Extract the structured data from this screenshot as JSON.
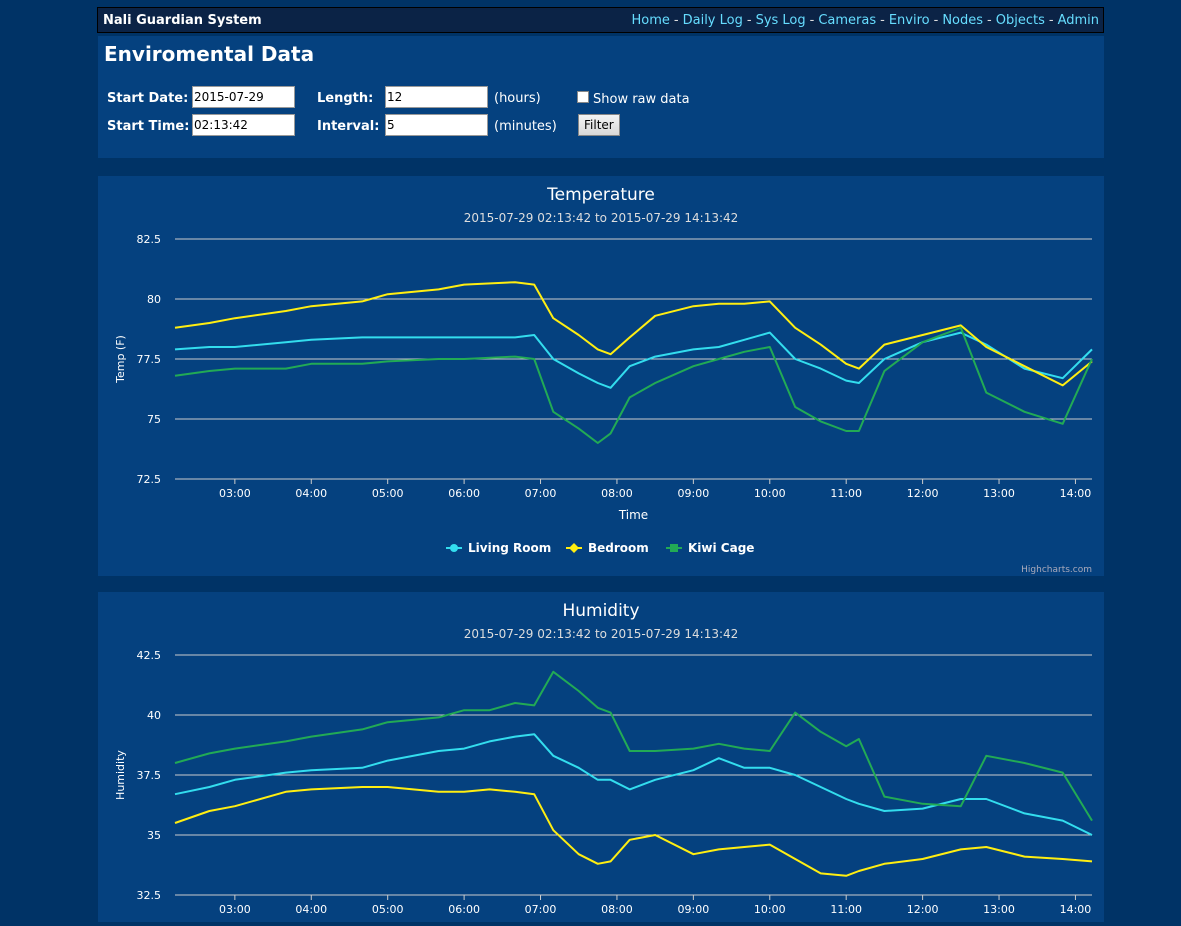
{
  "header": {
    "brand": "Nali Guardian System",
    "nav": [
      "Home",
      "Daily Log",
      "Sys Log",
      "Cameras",
      "Enviro",
      "Nodes",
      "Objects",
      "Admin"
    ]
  },
  "filter": {
    "title": "Enviromental Data",
    "start_date_label": "Start Date:",
    "start_date": "2015-07-29",
    "start_time_label": "Start Time:",
    "start_time": "02:13:42",
    "length_label": "Length:",
    "length": "12",
    "length_unit": "(hours)",
    "interval_label": "Interval:",
    "interval": "5",
    "interval_unit": "(minutes)",
    "raw_label": "Show raw data",
    "filter_button": "Filter"
  },
  "credit": "Highcharts.com",
  "colors": {
    "living": "#33ddee",
    "bedroom": "#ffee11",
    "kiwi": "#22aa55"
  },
  "chart_data": [
    {
      "type": "line",
      "title": "Temperature",
      "subtitle": "2015-07-29 02:13:42 to 2015-07-29 14:13:42",
      "xlabel": "Time",
      "ylabel": "Temp (F)",
      "ylim": [
        72.5,
        82.5
      ],
      "yticks": [
        "82.5",
        "80",
        "77.5",
        "75",
        "72.5"
      ],
      "xticks": [
        "03:00",
        "04:00",
        "05:00",
        "06:00",
        "07:00",
        "08:00",
        "09:00",
        "10:00",
        "11:00",
        "12:00",
        "13:00",
        "14:00"
      ],
      "xrange": [
        "02:13",
        "14:13"
      ],
      "legend": "bottom-center",
      "series": [
        {
          "name": "Living Room",
          "key": "living",
          "marker": "circle",
          "x": [
            "02:13",
            "02:40",
            "03:00",
            "03:40",
            "04:00",
            "04:40",
            "05:00",
            "05:40",
            "06:00",
            "06:40",
            "06:55",
            "07:10",
            "07:30",
            "07:45",
            "07:55",
            "08:10",
            "08:30",
            "09:00",
            "09:20",
            "09:40",
            "10:00",
            "10:20",
            "10:40",
            "11:00",
            "11:10",
            "11:30",
            "12:00",
            "12:30",
            "12:50",
            "13:20",
            "13:50",
            "14:13"
          ],
          "y": [
            77.9,
            78.0,
            78.0,
            78.2,
            78.3,
            78.4,
            78.4,
            78.4,
            78.4,
            78.4,
            78.5,
            77.5,
            76.9,
            76.5,
            76.3,
            77.2,
            77.6,
            77.9,
            78.0,
            78.3,
            78.6,
            77.5,
            77.1,
            76.6,
            76.5,
            77.5,
            78.2,
            78.6,
            78.1,
            77.1,
            76.7,
            77.9
          ]
        },
        {
          "name": "Bedroom",
          "key": "bedroom",
          "marker": "diamond",
          "x": [
            "02:13",
            "02:40",
            "03:00",
            "03:40",
            "04:00",
            "04:40",
            "05:00",
            "05:40",
            "06:00",
            "06:40",
            "06:55",
            "07:10",
            "07:30",
            "07:45",
            "07:55",
            "08:10",
            "08:30",
            "09:00",
            "09:20",
            "09:40",
            "10:00",
            "10:20",
            "10:40",
            "11:00",
            "11:10",
            "11:30",
            "12:00",
            "12:30",
            "12:50",
            "13:20",
            "13:50",
            "14:13"
          ],
          "y": [
            78.8,
            79.0,
            79.2,
            79.5,
            79.7,
            79.9,
            80.2,
            80.4,
            80.6,
            80.7,
            80.6,
            79.2,
            78.5,
            77.9,
            77.7,
            78.4,
            79.3,
            79.7,
            79.8,
            79.8,
            79.9,
            78.8,
            78.1,
            77.3,
            77.1,
            78.1,
            78.5,
            78.9,
            78.0,
            77.2,
            76.4,
            77.4
          ]
        },
        {
          "name": "Kiwi Cage",
          "key": "kiwi",
          "marker": "square",
          "x": [
            "02:13",
            "02:40",
            "03:00",
            "03:40",
            "04:00",
            "04:40",
            "05:00",
            "05:40",
            "06:00",
            "06:40",
            "06:55",
            "07:10",
            "07:30",
            "07:45",
            "07:55",
            "08:10",
            "08:30",
            "09:00",
            "09:20",
            "09:40",
            "10:00",
            "10:20",
            "10:40",
            "11:00",
            "11:10",
            "11:30",
            "12:00",
            "12:30",
            "12:50",
            "13:20",
            "13:50",
            "14:13"
          ],
          "y": [
            76.8,
            77.0,
            77.1,
            77.1,
            77.3,
            77.3,
            77.4,
            77.5,
            77.5,
            77.6,
            77.5,
            75.3,
            74.6,
            74.0,
            74.4,
            75.9,
            76.5,
            77.2,
            77.5,
            77.8,
            78.0,
            75.5,
            74.9,
            74.5,
            74.5,
            77.0,
            78.2,
            78.8,
            76.1,
            75.3,
            74.8,
            77.5
          ]
        }
      ]
    },
    {
      "type": "line",
      "title": "Humidity",
      "subtitle": "2015-07-29 02:13:42 to 2015-07-29 14:13:42",
      "ylabel": "Humidity",
      "ylim": [
        32.5,
        42.5
      ],
      "yticks": [
        "42.5",
        "40",
        "37.5",
        "35",
        "32.5"
      ],
      "xticks": [
        "03:00",
        "04:00",
        "05:00",
        "06:00",
        "07:00",
        "08:00",
        "09:00",
        "10:00",
        "11:00",
        "12:00",
        "13:00",
        "14:00"
      ],
      "xrange": [
        "02:13",
        "14:13"
      ],
      "series": [
        {
          "name": "Living Room",
          "key": "living",
          "x": [
            "02:13",
            "02:40",
            "03:00",
            "03:40",
            "04:00",
            "04:40",
            "05:00",
            "05:40",
            "06:00",
            "06:20",
            "06:40",
            "06:55",
            "07:10",
            "07:30",
            "07:45",
            "07:55",
            "08:10",
            "08:30",
            "09:00",
            "09:20",
            "09:40",
            "10:00",
            "10:20",
            "10:40",
            "11:00",
            "11:10",
            "11:30",
            "12:00",
            "12:30",
            "12:50",
            "13:20",
            "13:50",
            "14:13"
          ],
          "y": [
            36.7,
            37.0,
            37.3,
            37.6,
            37.7,
            37.8,
            38.1,
            38.5,
            38.6,
            38.9,
            39.1,
            39.2,
            38.3,
            37.8,
            37.3,
            37.3,
            36.9,
            37.3,
            37.7,
            38.2,
            37.8,
            37.8,
            37.5,
            37.0,
            36.5,
            36.3,
            36.0,
            36.1,
            36.5,
            36.5,
            35.9,
            35.6,
            35.0
          ]
        },
        {
          "name": "Bedroom",
          "key": "bedroom",
          "x": [
            "02:13",
            "02:40",
            "03:00",
            "03:40",
            "04:00",
            "04:40",
            "05:00",
            "05:40",
            "06:00",
            "06:20",
            "06:40",
            "06:55",
            "07:10",
            "07:30",
            "07:45",
            "07:55",
            "08:10",
            "08:30",
            "09:00",
            "09:20",
            "09:40",
            "10:00",
            "10:20",
            "10:40",
            "11:00",
            "11:10",
            "11:30",
            "12:00",
            "12:30",
            "12:50",
            "13:20",
            "13:50",
            "14:13"
          ],
          "y": [
            35.5,
            36.0,
            36.2,
            36.8,
            36.9,
            37.0,
            37.0,
            36.8,
            36.8,
            36.9,
            36.8,
            36.7,
            35.2,
            34.2,
            33.8,
            33.9,
            34.8,
            35.0,
            34.2,
            34.4,
            34.5,
            34.6,
            34.0,
            33.4,
            33.3,
            33.5,
            33.8,
            34.0,
            34.4,
            34.5,
            34.1,
            34.0,
            33.9
          ]
        },
        {
          "name": "Kiwi Cage",
          "key": "kiwi",
          "x": [
            "02:13",
            "02:40",
            "03:00",
            "03:40",
            "04:00",
            "04:40",
            "05:00",
            "05:40",
            "06:00",
            "06:20",
            "06:40",
            "06:55",
            "07:10",
            "07:30",
            "07:45",
            "07:55",
            "08:10",
            "08:30",
            "09:00",
            "09:20",
            "09:40",
            "10:00",
            "10:20",
            "10:40",
            "11:00",
            "11:10",
            "11:30",
            "12:00",
            "12:30",
            "12:50",
            "13:20",
            "13:50",
            "14:13"
          ],
          "y": [
            38.0,
            38.4,
            38.6,
            38.9,
            39.1,
            39.4,
            39.7,
            39.9,
            40.2,
            40.2,
            40.5,
            40.4,
            41.8,
            41.0,
            40.3,
            40.1,
            38.5,
            38.5,
            38.6,
            38.8,
            38.6,
            38.5,
            40.1,
            39.3,
            38.7,
            39.0,
            36.6,
            36.3,
            36.2,
            38.3,
            38.0,
            37.6,
            35.6
          ]
        }
      ]
    }
  ]
}
